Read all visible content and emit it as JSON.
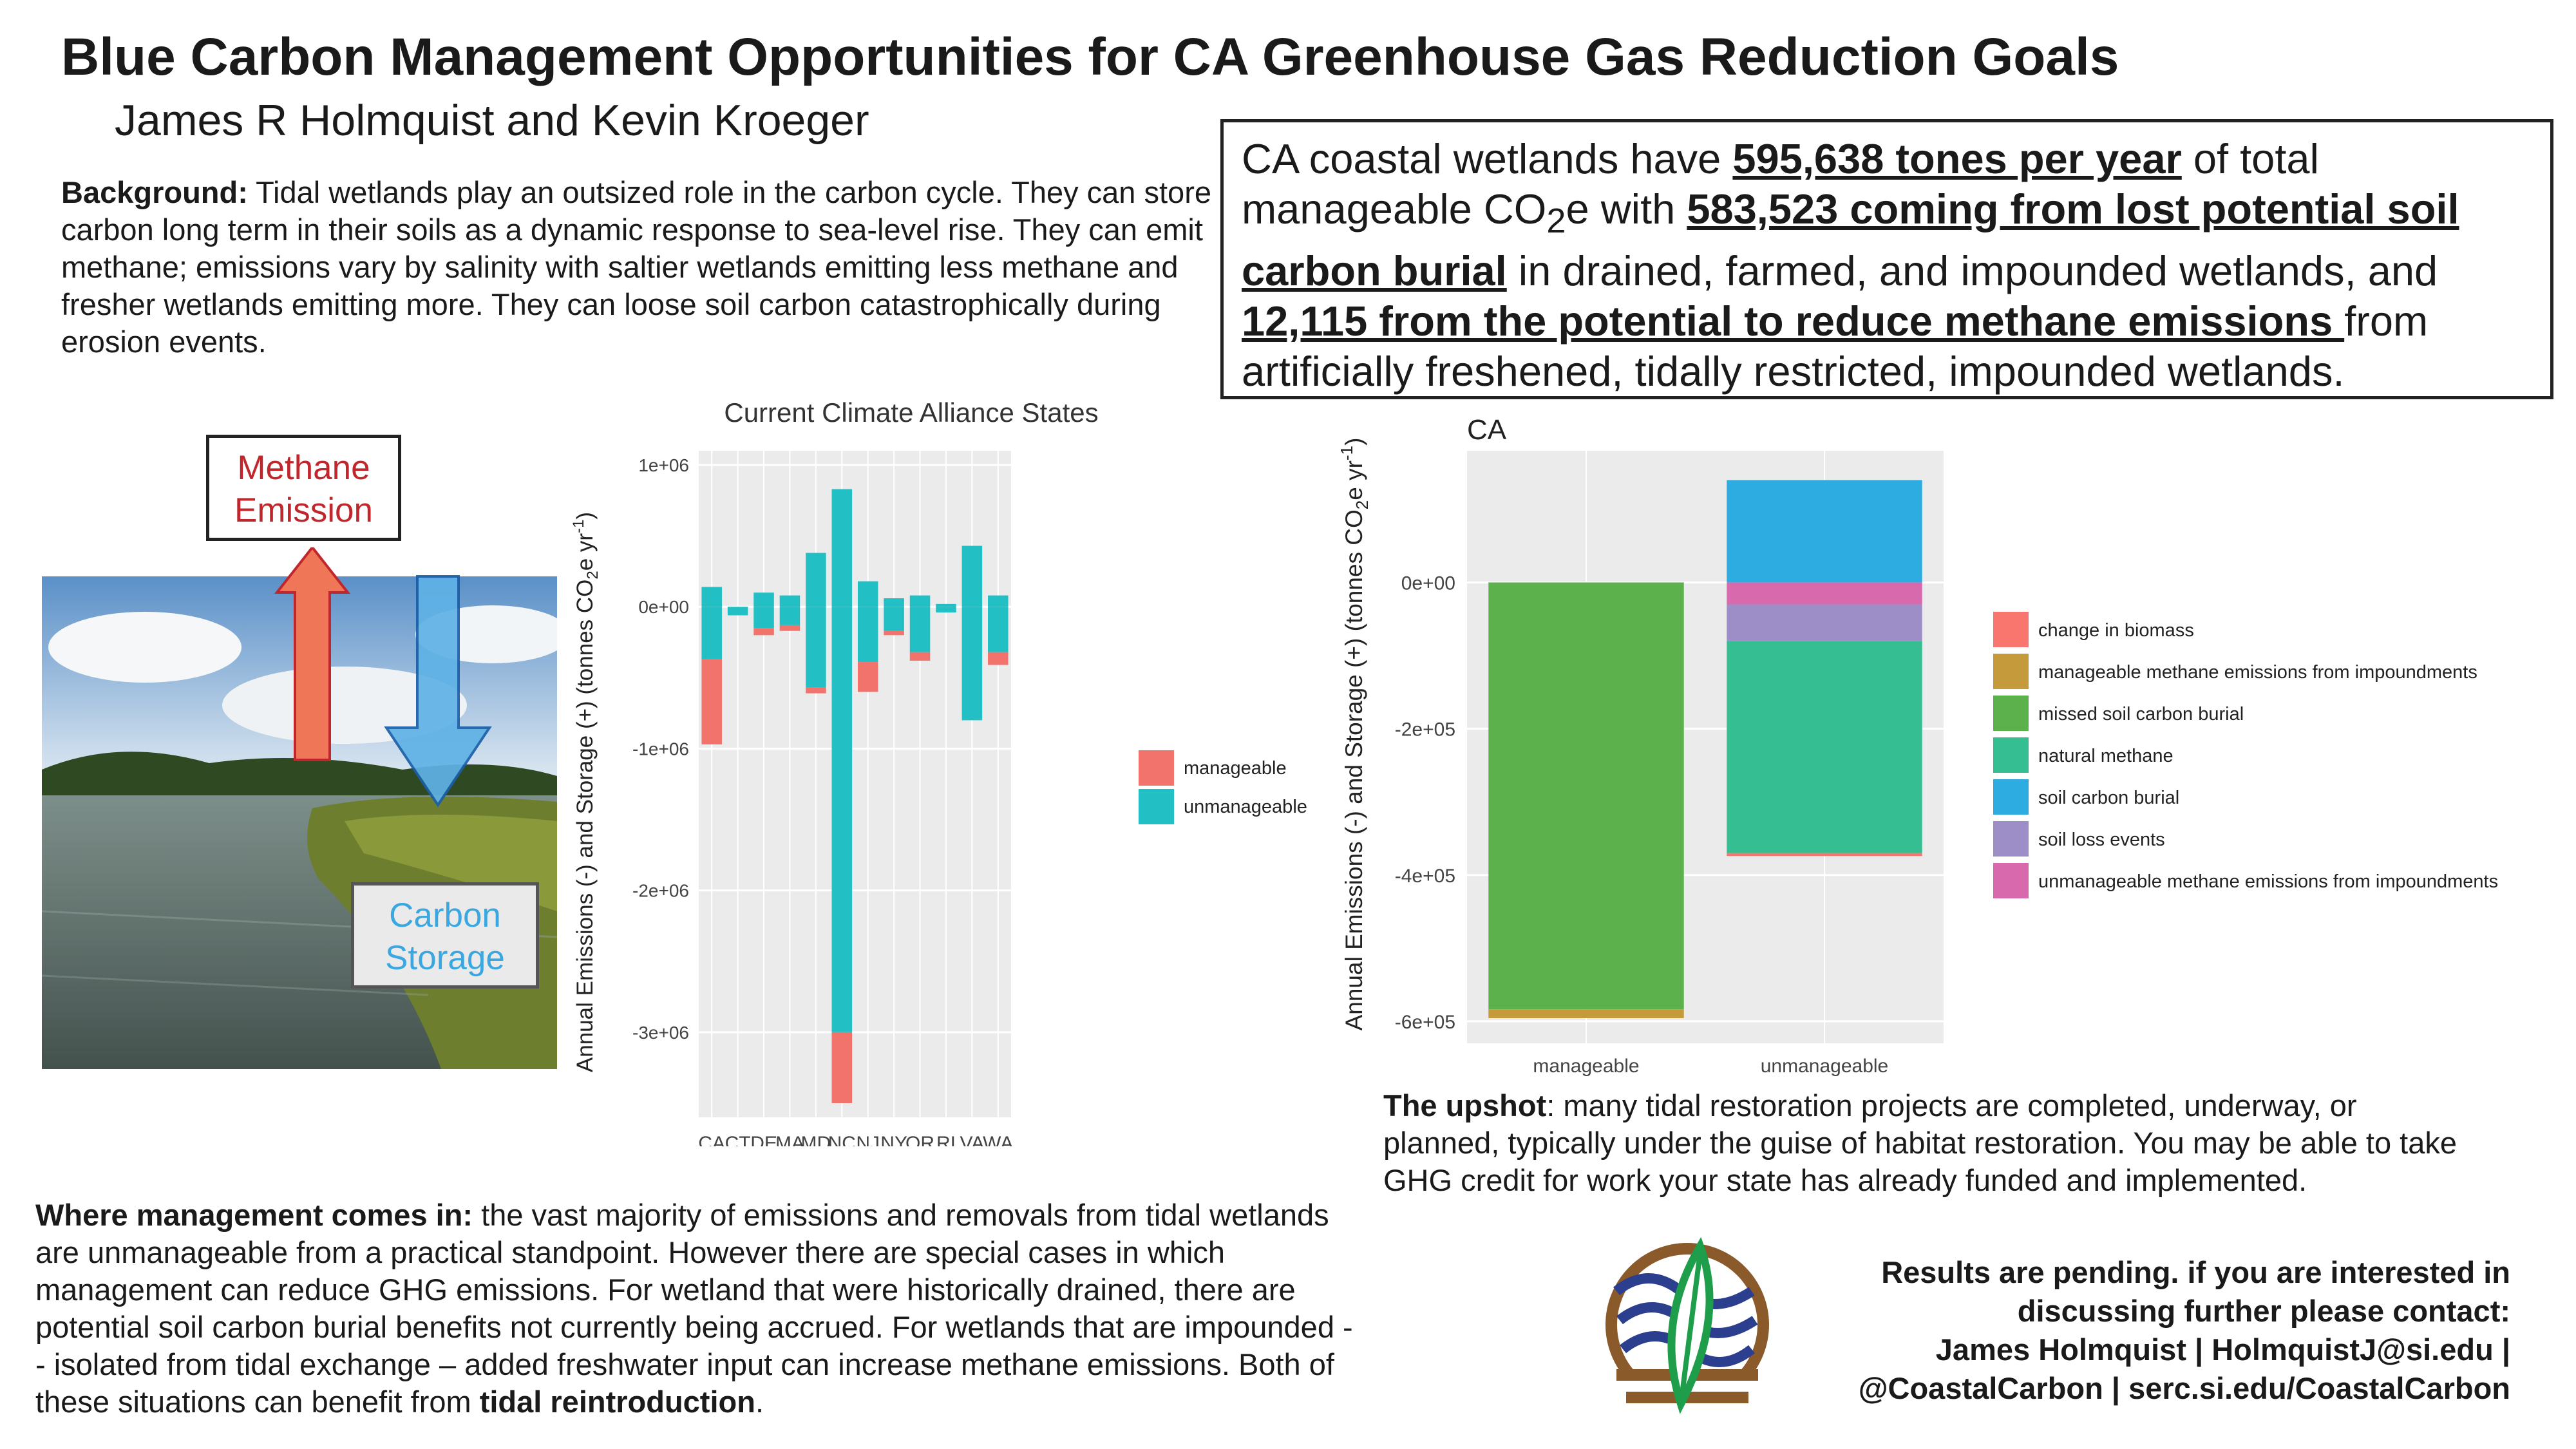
{
  "title": "Blue Carbon Management Opportunities for CA Greenhouse Gas Reduction Goals",
  "authors": "James R Holmquist and Kevin Kroeger",
  "background": {
    "label": "Background:",
    "text": " Tidal wetlands play an outsized role in the carbon cycle. They can store carbon long term in their soils as a dynamic response to sea-level rise. They can emit methane; emissions vary by salinity with saltier wetlands emitting less methane and fresher wetlands emitting more. They can loose soil carbon catastrophically during erosion events."
  },
  "summary": {
    "t1": "CA coastal wetlands have ",
    "u1": "595,638 tones per year",
    "t2": " of total manageable CO",
    "sub": "2",
    "t3": "e with ",
    "u2": "583,523 coming from lost potential soil carbon burial",
    "t4": " in drained, farmed, and impounded wetlands, and ",
    "u3": "12,115 from the potential to reduce methane emissions ",
    "t5": "from artificially freshened, tidally restricted, impounded wetlands."
  },
  "diagram": {
    "methane_line1": "Methane",
    "methane_line2": "Emission",
    "storage_line1": "Carbon",
    "storage_line2": "Storage",
    "colors": {
      "methane_arrow": "#f07658",
      "storage_arrow": "#5fb2e6"
    }
  },
  "management": {
    "label": "Where management comes in:",
    "text": " the vast majority of emissions and removals from tidal wetlands are unmanageable from a practical standpoint. However there are special cases in which management can reduce GHG emissions. For wetland that were historically drained, there are potential soil carbon burial benefits not currently being accrued. For wetlands that are impounded -- isolated from tidal exchange – added freshwater input can increase methane emissions. Both of these situations can benefit from ",
    "bold_end": "tidal reintroduction",
    "end": "."
  },
  "upshot": {
    "label": "The upshot",
    "text": ": many tidal restoration projects are completed, underway, or planned, typically under the guise of habitat restoration. You may be able to take GHG credit for work your state has already funded and implemented."
  },
  "contact": {
    "line1": "Results are pending. if you are interested in",
    "line2": "discussing further please contact:",
    "line3": "James Holmquist | HolmquistJ@si.edu |",
    "line4": "@CoastalCarbon | serc.si.edu/CoastalCarbon"
  },
  "chart_data": [
    {
      "type": "bar",
      "stacked": true,
      "title": "Current Climate Alliance States",
      "ylabel": "Annual Emissions (-) and Storage (+) (tonnes CO2e yr-1)",
      "ylim": [
        -3600000,
        1100000
      ],
      "yticks": [
        1000000,
        0,
        -1000000,
        -2000000,
        -3000000
      ],
      "ytick_labels": [
        "1e+06",
        "0e+00",
        "-1e+06",
        "-2e+06",
        "-3e+06"
      ],
      "categories": [
        "CA",
        "CT",
        "DE",
        "MA",
        "MD",
        "NC",
        "NJ",
        "NY",
        "OR",
        "RI",
        "VA",
        "WA"
      ],
      "series": [
        {
          "name": "unmanageable",
          "color": "#22bfc4",
          "pos": [
            140000,
            0,
            100000,
            80000,
            380000,
            830000,
            180000,
            60000,
            80000,
            20000,
            430000,
            80000
          ],
          "neg": [
            -370000,
            -60000,
            -150000,
            -130000,
            -570000,
            -3000000,
            -390000,
            -170000,
            -320000,
            -40000,
            -800000,
            -320000
          ]
        },
        {
          "name": "manageable",
          "color": "#f1736b",
          "neg": [
            -600000,
            0,
            -50000,
            -40000,
            -40000,
            -500000,
            -210000,
            -30000,
            -60000,
            0,
            0,
            -90000
          ]
        }
      ],
      "legend": "right",
      "grid": true
    },
    {
      "type": "bar",
      "stacked": true,
      "title": "CA",
      "ylabel": "Annual Emissions (-) and Storage (+) (tonnes CO2e yr-1)",
      "ylim": [
        -630000,
        180000
      ],
      "yticks": [
        0,
        -200000,
        -400000,
        -600000
      ],
      "ytick_labels": [
        "0e+00",
        "-2e+05",
        "-4e+05",
        "-6e+05"
      ],
      "categories": [
        "manageable",
        "unmanageable"
      ],
      "series": [
        {
          "name": "change in biomass",
          "color": "#f8766d",
          "values": [
            0,
            -4000
          ]
        },
        {
          "name": "manageable methane emissions from impoundments",
          "color": "#c49a3b",
          "values": [
            -12115,
            0
          ]
        },
        {
          "name": "missed soil carbon burial",
          "color": "#5db14d",
          "values": [
            -583523,
            0
          ]
        },
        {
          "name": "natural methane",
          "color": "#35be91",
          "values": [
            0,
            -290000
          ]
        },
        {
          "name": "soil carbon burial",
          "color": "#2cace0",
          "values": [
            0,
            140000
          ]
        },
        {
          "name": "soil loss events",
          "color": "#9d8ec8",
          "values": [
            0,
            -50000
          ]
        },
        {
          "name": "unmanageable methane emissions from impoundments",
          "color": "#d969ad",
          "values": [
            0,
            -30000
          ]
        }
      ],
      "legend": "right",
      "grid": true
    }
  ]
}
